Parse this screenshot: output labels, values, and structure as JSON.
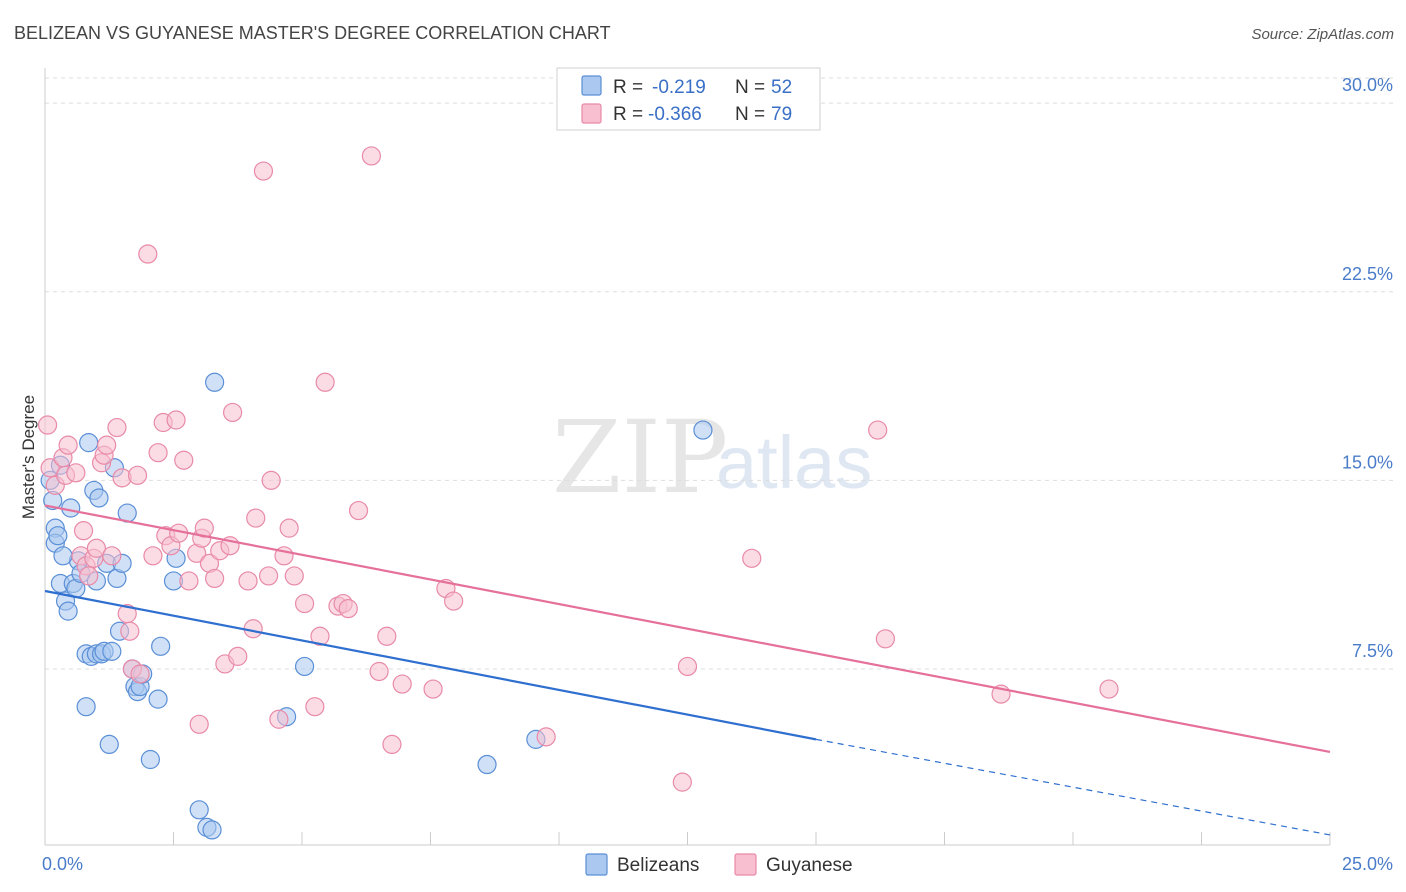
{
  "title": "BELIZEAN VS GUYANESE MASTER'S DEGREE CORRELATION CHART",
  "source": "Source: ZipAtlas.com",
  "watermark": {
    "zip": "ZIP",
    "atlas": "atlas"
  },
  "colors": {
    "blue_fill": "#aac8f0",
    "blue_stroke": "#5b8fd6",
    "blue_line": "#2f6fcf",
    "pink_fill": "#f7bfd0",
    "pink_stroke": "#e88aa8",
    "pink_line": "#e5709a",
    "grid": "#dddddd",
    "axis": "#cccccc"
  },
  "legend": {
    "rows": [
      {
        "r_label": "R =",
        "r_value": "-0.219",
        "n_label": "N =",
        "n_value": "52",
        "series": "blue"
      },
      {
        "r_label": "R =",
        "r_value": "-0.366",
        "n_label": "N =",
        "n_value": "79",
        "series": "pink"
      }
    ]
  },
  "chart_data": {
    "type": "scatter",
    "title": "BELIZEAN VS GUYANESE MASTER'S DEGREE CORRELATION CHART",
    "xlabel": "",
    "ylabel": "Master's Degree",
    "xlim": [
      0,
      25
    ],
    "ylim": [
      0.5,
      31
    ],
    "x_ticks": [
      {
        "value": 0,
        "label": "0.0%"
      },
      {
        "value": 25,
        "label": "25.0%"
      }
    ],
    "y_ticks": [
      {
        "value": 7.5,
        "label": "7.5%"
      },
      {
        "value": 15,
        "label": "15.0%"
      },
      {
        "value": 22.5,
        "label": "22.5%"
      },
      {
        "value": 30,
        "label": "30.0%"
      }
    ],
    "legend_position": "top-center",
    "series": [
      {
        "name": "Belizeans",
        "color": "blue",
        "trend": {
          "x0": 0,
          "y0": 10.6,
          "x1": 15,
          "y1": 4.7,
          "dash_to_x": 25,
          "dash_to_y": 0.9
        },
        "points": [
          [
            0.15,
            14.2
          ],
          [
            0.2,
            13.1
          ],
          [
            0.2,
            12.5
          ],
          [
            0.25,
            12.8
          ],
          [
            0.3,
            15.6
          ],
          [
            0.3,
            10.9
          ],
          [
            0.4,
            10.2
          ],
          [
            0.45,
            9.8
          ],
          [
            0.5,
            13.9
          ],
          [
            0.55,
            10.9
          ],
          [
            0.6,
            10.7
          ],
          [
            0.65,
            11.8
          ],
          [
            0.7,
            11.3
          ],
          [
            0.8,
            8.1
          ],
          [
            0.8,
            6.0
          ],
          [
            0.85,
            16.5
          ],
          [
            0.9,
            8.0
          ],
          [
            0.95,
            14.6
          ],
          [
            1.0,
            8.1
          ],
          [
            1.0,
            11.0
          ],
          [
            1.05,
            14.3
          ],
          [
            1.1,
            8.1
          ],
          [
            1.15,
            8.2
          ],
          [
            1.2,
            11.7
          ],
          [
            1.25,
            4.5
          ],
          [
            1.3,
            8.2
          ],
          [
            1.35,
            15.5
          ],
          [
            1.4,
            11.1
          ],
          [
            1.45,
            9.0
          ],
          [
            1.5,
            11.7
          ],
          [
            1.6,
            13.7
          ],
          [
            1.7,
            7.5
          ],
          [
            1.75,
            6.8
          ],
          [
            1.8,
            6.6
          ],
          [
            1.85,
            6.8
          ],
          [
            1.9,
            7.3
          ],
          [
            2.05,
            3.9
          ],
          [
            2.2,
            6.3
          ],
          [
            2.25,
            8.4
          ],
          [
            2.5,
            11.0
          ],
          [
            2.55,
            11.9
          ],
          [
            3.0,
            1.9
          ],
          [
            3.15,
            1.2
          ],
          [
            3.25,
            1.1
          ],
          [
            3.3,
            18.9
          ],
          [
            4.7,
            5.6
          ],
          [
            5.05,
            7.6
          ],
          [
            8.6,
            3.7
          ],
          [
            9.55,
            4.7
          ],
          [
            12.8,
            17.0
          ],
          [
            0.1,
            15.0
          ],
          [
            0.35,
            12.0
          ]
        ]
      },
      {
        "name": "Guyanese",
        "color": "pink",
        "trend": {
          "x0": 0,
          "y0": 14.0,
          "x1": 25,
          "y1": 4.2
        },
        "points": [
          [
            0.05,
            17.2
          ],
          [
            0.1,
            15.5
          ],
          [
            0.2,
            14.8
          ],
          [
            0.35,
            15.9
          ],
          [
            0.4,
            15.2
          ],
          [
            0.45,
            16.4
          ],
          [
            0.6,
            15.3
          ],
          [
            0.7,
            12.0
          ],
          [
            0.75,
            13.0
          ],
          [
            0.8,
            11.6
          ],
          [
            0.85,
            11.2
          ],
          [
            0.95,
            11.9
          ],
          [
            1.0,
            12.3
          ],
          [
            1.1,
            15.7
          ],
          [
            1.15,
            16.0
          ],
          [
            1.2,
            16.4
          ],
          [
            1.3,
            12.0
          ],
          [
            1.4,
            17.1
          ],
          [
            1.5,
            15.1
          ],
          [
            1.6,
            9.7
          ],
          [
            1.65,
            9.0
          ],
          [
            1.7,
            7.5
          ],
          [
            1.8,
            15.2
          ],
          [
            1.85,
            7.3
          ],
          [
            2.0,
            24.0
          ],
          [
            2.1,
            12.0
          ],
          [
            2.2,
            16.1
          ],
          [
            2.3,
            17.3
          ],
          [
            2.35,
            12.8
          ],
          [
            2.45,
            12.4
          ],
          [
            2.55,
            17.4
          ],
          [
            2.6,
            12.9
          ],
          [
            2.7,
            15.8
          ],
          [
            2.8,
            11.0
          ],
          [
            2.95,
            12.1
          ],
          [
            3.0,
            5.3
          ],
          [
            3.05,
            12.7
          ],
          [
            3.1,
            13.1
          ],
          [
            3.2,
            11.7
          ],
          [
            3.3,
            11.1
          ],
          [
            3.4,
            12.2
          ],
          [
            3.5,
            7.7
          ],
          [
            3.6,
            12.4
          ],
          [
            3.65,
            17.7
          ],
          [
            3.75,
            8.0
          ],
          [
            3.95,
            11.0
          ],
          [
            4.05,
            9.1
          ],
          [
            4.1,
            13.5
          ],
          [
            4.25,
            27.3
          ],
          [
            4.35,
            11.2
          ],
          [
            4.4,
            15.0
          ],
          [
            4.55,
            5.5
          ],
          [
            4.65,
            12.0
          ],
          [
            4.75,
            13.1
          ],
          [
            4.85,
            11.2
          ],
          [
            5.05,
            10.1
          ],
          [
            5.25,
            6.0
          ],
          [
            5.35,
            8.8
          ],
          [
            5.45,
            18.9
          ],
          [
            5.7,
            10.0
          ],
          [
            5.8,
            10.1
          ],
          [
            5.9,
            9.9
          ],
          [
            6.1,
            13.8
          ],
          [
            6.35,
            27.9
          ],
          [
            6.5,
            7.4
          ],
          [
            6.65,
            8.8
          ],
          [
            6.75,
            4.5
          ],
          [
            6.95,
            6.9
          ],
          [
            7.55,
            6.7
          ],
          [
            7.8,
            10.7
          ],
          [
            7.95,
            10.2
          ],
          [
            9.75,
            4.8
          ],
          [
            12.4,
            3.0
          ],
          [
            12.5,
            7.6
          ],
          [
            13.75,
            11.9
          ],
          [
            16.2,
            17.0
          ],
          [
            16.35,
            8.7
          ],
          [
            18.6,
            6.5
          ],
          [
            20.7,
            6.7
          ]
        ]
      }
    ]
  },
  "bottom_legend": [
    {
      "label": "Belizeans",
      "series": "blue"
    },
    {
      "label": "Guyanese",
      "series": "pink"
    }
  ]
}
